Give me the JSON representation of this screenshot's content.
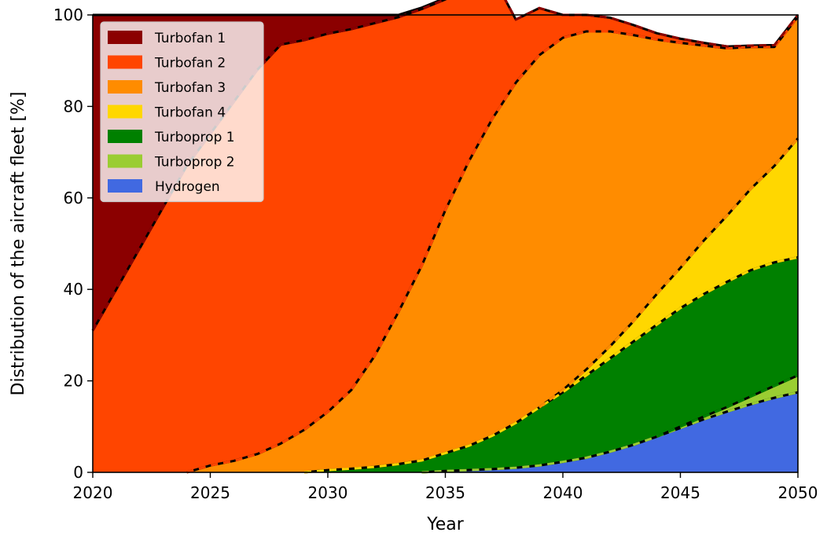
{
  "chart_data": {
    "type": "area",
    "stacked": true,
    "xlabel": "Year",
    "ylabel": "Distribution of the aircraft fleet [%]",
    "xlim": [
      2020,
      2050
    ],
    "ylim": [
      0,
      100
    ],
    "xticks": [
      "2020",
      "2025",
      "2030",
      "2035",
      "2040",
      "2045",
      "2050"
    ],
    "yticks": [
      "0",
      "20",
      "40",
      "60",
      "80",
      "100"
    ],
    "legend_position": "top-left",
    "grid": false,
    "x": [
      2020,
      2021,
      2022,
      2023,
      2024,
      2025,
      2026,
      2027,
      2028,
      2029,
      2030,
      2031,
      2032,
      2033,
      2034,
      2035,
      2036,
      2037,
      2038,
      2039,
      2040,
      2041,
      2042,
      2043,
      2044,
      2045,
      2046,
      2047,
      2048,
      2049,
      2050
    ],
    "series": [
      {
        "name": "Hydrogen",
        "color": "#4169e1",
        "values": [
          0,
          0,
          0,
          0,
          0,
          0,
          0,
          0,
          0,
          0,
          0,
          0,
          0,
          0,
          0,
          0.3,
          0.5,
          0.7,
          1.0,
          1.5,
          2.3,
          3.2,
          4.5,
          6.0,
          7.8,
          9.7,
          11.6,
          13.3,
          14.9,
          16.3,
          17.5
        ]
      },
      {
        "name": "Turboprop 2",
        "color": "#9acd32",
        "values": [
          0,
          0,
          0,
          0,
          0,
          0,
          0,
          0,
          0,
          0,
          0,
          0,
          0,
          0,
          0,
          0,
          0,
          0,
          0,
          0,
          0,
          0,
          0,
          0,
          0,
          0.3,
          0.6,
          1.0,
          1.7,
          2.6,
          3.7
        ]
      },
      {
        "name": "Turboprop 1",
        "color": "#008000",
        "values": [
          0,
          0,
          0,
          0,
          0,
          0,
          0,
          0,
          0,
          0,
          0.5,
          0.8,
          1.2,
          1.8,
          2.6,
          3.9,
          5.3,
          7.3,
          9.8,
          12.7,
          15.2,
          18.0,
          20.4,
          22.6,
          24.5,
          25.9,
          26.8,
          27.4,
          27.6,
          27.0,
          25.8
        ]
      },
      {
        "name": "Turbofan 4",
        "color": "#ffd700",
        "values": [
          0,
          0,
          0,
          0,
          0,
          0,
          0,
          0,
          0,
          0,
          0,
          0,
          0,
          0,
          0,
          0,
          0,
          0,
          0,
          0,
          0.5,
          1.3,
          2.6,
          4.4,
          6.7,
          8.8,
          11.7,
          14.5,
          17.8,
          21.1,
          26.0
        ]
      },
      {
        "name": "Turbofan 3",
        "color": "#ff8c00",
        "values": [
          0,
          0,
          0,
          0,
          0,
          1.5,
          2.5,
          4.0,
          6.3,
          9.3,
          12.7,
          17.2,
          24.3,
          33.2,
          42.6,
          53.1,
          62.2,
          69.3,
          74.4,
          77.0,
          77.0,
          73.9,
          68.9,
          62.6,
          55.6,
          49.2,
          42.6,
          36.5,
          31.0,
          26.0,
          26.6
        ]
      },
      {
        "name": "Turbofan 2",
        "color": "#ff4500",
        "values": [
          31.0,
          40.0,
          49.0,
          58.0,
          67.0,
          72.5,
          78.5,
          84.0,
          87.2,
          85.2,
          82.7,
          78.9,
          72.7,
          64.5,
          56.1,
          46.1,
          37.6,
          31.3,
          13.8,
          10.3,
          5.0,
          3.6,
          3.0,
          2.2,
          1.4,
          0.9,
          0.6,
          0.4,
          0.3,
          0.4,
          0.4
        ]
      },
      {
        "name": "Turbofan 1",
        "color": "#8b0000",
        "values": [
          69.0,
          60.0,
          51.0,
          42.0,
          33.0,
          26.0,
          19.0,
          12.0,
          6.5,
          5.5,
          4.1,
          3.1,
          1.8,
          0.5,
          0.3,
          0.3,
          0.2,
          0,
          0,
          0,
          0,
          0,
          0,
          0,
          0,
          0,
          0,
          0,
          0,
          0,
          0
        ]
      }
    ],
    "legend_order": [
      "Turbofan 1",
      "Turbofan 2",
      "Turbofan 3",
      "Turbofan 4",
      "Turboprop 1",
      "Turboprop 2",
      "Hydrogen"
    ]
  }
}
